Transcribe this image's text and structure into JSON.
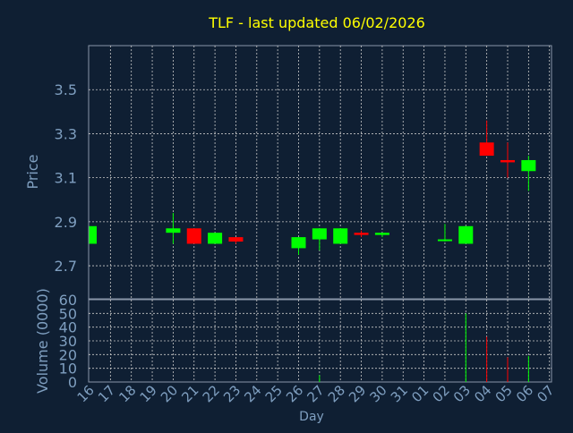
{
  "colors": {
    "background": "#0f1f33",
    "plot_border": "#8a96a8",
    "grid": "#c8c8c8",
    "title": "#ffff00",
    "axis_text": "#7f9fc0",
    "up": "#00ff00",
    "down": "#ff0000"
  },
  "chart_data": {
    "type": "candlestick",
    "title": "TLF - last updated 06/02/2026",
    "ylabel": "Price",
    "volume_label": "Volume (0000)",
    "xlabel": "Day",
    "grid": true,
    "price_ylim": [
      2.55,
      3.7
    ],
    "price_ticks": [
      "2.7",
      "2.9",
      "3.1",
      "3.3",
      "3.5"
    ],
    "volume_ylim": [
      0,
      60
    ],
    "volume_ticks": [
      "0",
      "10",
      "20",
      "30",
      "40",
      "50",
      "60"
    ],
    "days": [
      "16",
      "17",
      "18",
      "19",
      "20",
      "21",
      "22",
      "23",
      "24",
      "25",
      "26",
      "27",
      "28",
      "29",
      "30",
      "31",
      "01",
      "02",
      "03",
      "04",
      "05",
      "06",
      "07"
    ],
    "candles": [
      {
        "day": "16",
        "open": 2.8,
        "high": 2.88,
        "low": 2.8,
        "close": 2.88,
        "volume": 0
      },
      {
        "day": "20",
        "open": 2.85,
        "high": 2.94,
        "low": 2.8,
        "close": 2.87,
        "volume": 0
      },
      {
        "day": "21",
        "open": 2.87,
        "high": 2.87,
        "low": 2.8,
        "close": 2.8,
        "volume": 0
      },
      {
        "day": "22",
        "open": 2.8,
        "high": 2.85,
        "low": 2.8,
        "close": 2.85,
        "volume": 0
      },
      {
        "day": "23",
        "open": 2.83,
        "high": 2.83,
        "low": 2.8,
        "close": 2.81,
        "volume": 0
      },
      {
        "day": "26",
        "open": 2.78,
        "high": 2.83,
        "low": 2.75,
        "close": 2.83,
        "volume": 0
      },
      {
        "day": "27",
        "open": 2.82,
        "high": 2.87,
        "low": 2.77,
        "close": 2.87,
        "volume": 5
      },
      {
        "day": "28",
        "open": 2.8,
        "high": 2.87,
        "low": 2.8,
        "close": 2.87,
        "volume": 0
      },
      {
        "day": "29",
        "open": 2.85,
        "high": 2.86,
        "low": 2.83,
        "close": 2.84,
        "volume": 0
      },
      {
        "day": "30",
        "open": 2.84,
        "high": 2.85,
        "low": 2.83,
        "close": 2.85,
        "volume": 0
      },
      {
        "day": "02",
        "open": 2.82,
        "high": 2.89,
        "low": 2.81,
        "close": 2.82,
        "volume": 0
      },
      {
        "day": "03",
        "open": 2.8,
        "high": 2.88,
        "low": 2.8,
        "close": 2.88,
        "volume": 50
      },
      {
        "day": "04",
        "open": 3.26,
        "high": 3.36,
        "low": 3.2,
        "close": 3.2,
        "volume": 33
      },
      {
        "day": "05",
        "open": 3.18,
        "high": 3.26,
        "low": 3.1,
        "close": 3.17,
        "volume": 18
      },
      {
        "day": "06",
        "open": 3.13,
        "high": 3.2,
        "low": 3.04,
        "close": 3.18,
        "volume": 19
      }
    ]
  }
}
